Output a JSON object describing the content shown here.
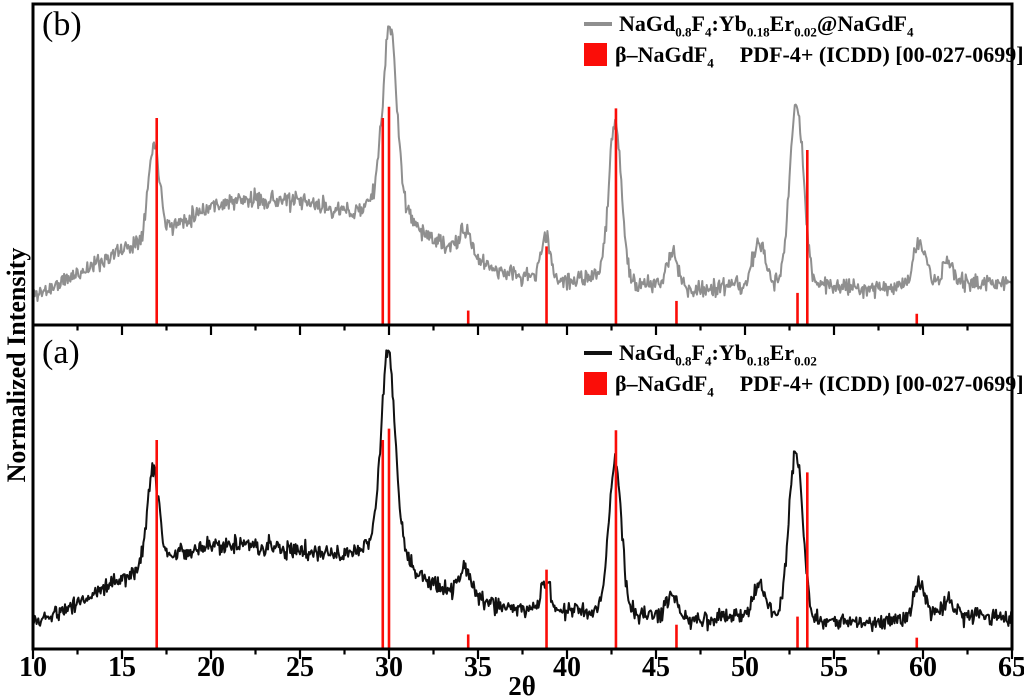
{
  "figure": {
    "background": "#ffffff",
    "axis_color": "#000000"
  },
  "chart_data": {
    "type": "line",
    "title": "",
    "xlabel": "2θ",
    "ylabel": "Normalized Intensity",
    "x_range": [
      10,
      65
    ],
    "x_major_ticks": [
      10,
      15,
      20,
      25,
      30,
      35,
      40,
      45,
      50,
      55,
      60,
      65
    ],
    "x_minor_ticks": [
      12.5,
      17.5,
      22.5,
      27.5,
      32.5,
      37.5,
      42.5,
      47.5,
      52.5,
      57.5,
      62.5
    ],
    "grid": false,
    "y_axis_ticks": "none (normalized intensity, unitless)",
    "legend_position": "top-right of each panel",
    "panels": [
      {
        "id": "b",
        "panel_label": "(b)",
        "series_label": "NaGd_{0.8}F_{4}:Yb_{0.18}Er_{0.02}@NaGdF_{4}",
        "color": "#8f8f8f",
        "noise": 0.013,
        "seed": 11,
        "baseline_anchors": [
          [
            10,
            0.085
          ],
          [
            12,
            0.145
          ],
          [
            14,
            0.205
          ],
          [
            15.5,
            0.25
          ],
          [
            18.3,
            0.32
          ],
          [
            20,
            0.375
          ],
          [
            22,
            0.39
          ],
          [
            24,
            0.39
          ],
          [
            26,
            0.375
          ],
          [
            27.5,
            0.35
          ],
          [
            28.7,
            0.35
          ],
          [
            31.5,
            0.3
          ],
          [
            33,
            0.25
          ],
          [
            35.5,
            0.185
          ],
          [
            37,
            0.155
          ],
          [
            40,
            0.135
          ],
          [
            41.5,
            0.15
          ],
          [
            44,
            0.125
          ],
          [
            47.5,
            0.11
          ],
          [
            49,
            0.12
          ],
          [
            55,
            0.125
          ],
          [
            57,
            0.115
          ],
          [
            63,
            0.135
          ],
          [
            65,
            0.125
          ]
        ],
        "peaks": [
          [
            16.8,
            0.28,
            0.45
          ],
          [
            30.05,
            0.48,
            0.5
          ],
          [
            30.0,
            0.13,
            1.05
          ],
          [
            34.3,
            0.075,
            0.5
          ],
          [
            38.8,
            0.125,
            0.4
          ],
          [
            42.7,
            0.5,
            0.5
          ],
          [
            45.9,
            0.11,
            0.45
          ],
          [
            50.8,
            0.135,
            0.5
          ],
          [
            52.9,
            0.565,
            0.55
          ],
          [
            59.8,
            0.13,
            0.5
          ],
          [
            61.4,
            0.06,
            0.45
          ]
        ]
      },
      {
        "id": "a",
        "panel_label": "(a)",
        "series_label": "NaGd_{0.8}F_{4}:Yb_{0.18}Er_{0.02}",
        "color": "#111111",
        "noise": 0.013,
        "seed": 5,
        "baseline_anchors": [
          [
            10,
            0.075
          ],
          [
            12,
            0.13
          ],
          [
            14,
            0.19
          ],
          [
            15.5,
            0.235
          ],
          [
            18.3,
            0.295
          ],
          [
            20,
            0.325
          ],
          [
            22,
            0.32
          ],
          [
            24,
            0.315
          ],
          [
            26,
            0.3
          ],
          [
            27.5,
            0.285
          ],
          [
            28.7,
            0.3
          ],
          [
            31.5,
            0.225
          ],
          [
            33,
            0.185
          ],
          [
            35.5,
            0.145
          ],
          [
            37,
            0.125
          ],
          [
            40,
            0.115
          ],
          [
            41.5,
            0.125
          ],
          [
            44,
            0.105
          ],
          [
            47.5,
            0.09
          ],
          [
            49,
            0.1
          ],
          [
            55,
            0.085
          ],
          [
            57,
            0.08
          ],
          [
            63,
            0.105
          ],
          [
            65,
            0.09
          ]
        ],
        "peaks": [
          [
            16.75,
            0.3,
            0.45
          ],
          [
            29.95,
            0.53,
            0.5
          ],
          [
            30.0,
            0.13,
            1.05
          ],
          [
            34.3,
            0.085,
            0.5
          ],
          [
            38.8,
            0.095,
            0.4
          ],
          [
            42.7,
            0.45,
            0.5
          ],
          [
            45.9,
            0.075,
            0.45
          ],
          [
            50.8,
            0.105,
            0.5
          ],
          [
            52.85,
            0.52,
            0.55
          ],
          [
            59.8,
            0.115,
            0.5
          ],
          [
            61.4,
            0.055,
            0.45
          ]
        ]
      }
    ],
    "reference": {
      "phase_label": "β–NaGdF_{4}",
      "card_label": "PDF-4+ (ICDD) [00-027-0699]",
      "color": "#fb0d08",
      "sticks": [
        [
          16.95,
          0.645
        ],
        [
          29.65,
          0.645
        ],
        [
          30.0,
          0.68
        ],
        [
          34.45,
          0.045
        ],
        [
          38.85,
          0.245
        ],
        [
          42.75,
          0.675
        ],
        [
          46.15,
          0.075
        ],
        [
          52.95,
          0.1
        ],
        [
          53.5,
          0.545
        ],
        [
          59.65,
          0.035
        ]
      ]
    }
  }
}
